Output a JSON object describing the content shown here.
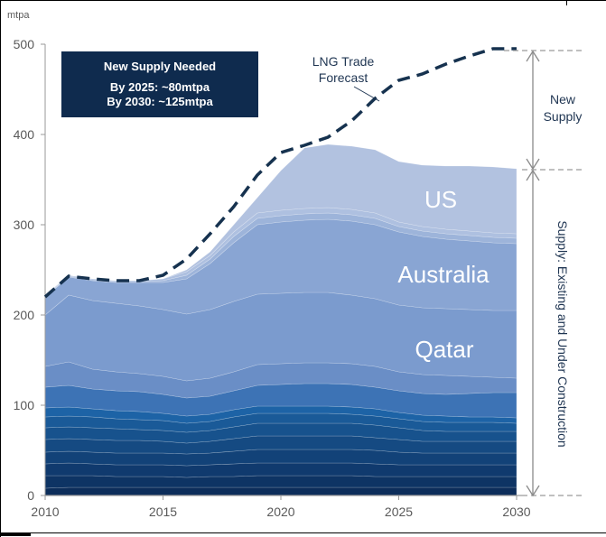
{
  "chart_data": {
    "type": "area",
    "ylabel": "mtpa",
    "xlabel": "",
    "ylim": [
      0,
      500
    ],
    "xlim": [
      2010,
      2030
    ],
    "y_ticks": [
      "0",
      "100",
      "200",
      "300",
      "400",
      "500"
    ],
    "x_ticks": [
      "2010",
      "2015",
      "2020",
      "2025",
      "2030"
    ],
    "x": [
      2010,
      2011,
      2012,
      2013,
      2014,
      2015,
      2016,
      2017,
      2018,
      2019,
      2020,
      2021,
      2022,
      2023,
      2024,
      2025,
      2026,
      2027,
      2028,
      2029,
      2030
    ],
    "series": [
      {
        "name": "base",
        "values": [
          8,
          9,
          9,
          9,
          9,
          9,
          9,
          9,
          9,
          9,
          9,
          9,
          9,
          9,
          9,
          9,
          9,
          9,
          9,
          9,
          9
        ]
      },
      {
        "name": "layer-2",
        "values": [
          22,
          22,
          22,
          21,
          21,
          21,
          20,
          21,
          21,
          22,
          22,
          22,
          22,
          22,
          21,
          21,
          21,
          21,
          21,
          21,
          21
        ]
      },
      {
        "name": "layer-3",
        "values": [
          35,
          36,
          35,
          34,
          34,
          34,
          33,
          34,
          35,
          36,
          36,
          36,
          36,
          36,
          35,
          34,
          34,
          34,
          34,
          34,
          34
        ]
      },
      {
        "name": "layer-4",
        "values": [
          48,
          49,
          48,
          47,
          47,
          47,
          46,
          47,
          49,
          51,
          51,
          51,
          51,
          51,
          50,
          48,
          47,
          47,
          47,
          47,
          47
        ]
      },
      {
        "name": "layer-5",
        "values": [
          62,
          63,
          62,
          61,
          61,
          60,
          58,
          60,
          63,
          66,
          66,
          66,
          66,
          66,
          64,
          62,
          60,
          60,
          60,
          60,
          60
        ]
      },
      {
        "name": "layer-6",
        "values": [
          75,
          76,
          75,
          74,
          73,
          72,
          70,
          72,
          76,
          80,
          80,
          80,
          80,
          80,
          78,
          75,
          72,
          71,
          71,
          71,
          71
        ]
      },
      {
        "name": "layer-7",
        "values": [
          87,
          88,
          87,
          85,
          84,
          83,
          80,
          82,
          87,
          91,
          91,
          91,
          91,
          90,
          88,
          85,
          82,
          81,
          81,
          81,
          80
        ]
      },
      {
        "name": "layer-8",
        "values": [
          97,
          98,
          96,
          94,
          93,
          91,
          88,
          90,
          95,
          99,
          99,
          99,
          99,
          98,
          96,
          92,
          89,
          88,
          87,
          87,
          86
        ]
      },
      {
        "name": "layer-9",
        "values": [
          120,
          122,
          118,
          116,
          115,
          112,
          108,
          110,
          116,
          122,
          123,
          124,
          124,
          123,
          120,
          116,
          113,
          112,
          113,
          114,
          114
        ]
      },
      {
        "name": "layer-10",
        "values": [
          143,
          148,
          140,
          137,
          135,
          132,
          127,
          130,
          137,
          145,
          146,
          147,
          147,
          146,
          143,
          137,
          134,
          133,
          132,
          131,
          130
        ]
      },
      {
        "name": "Qatar",
        "values": [
          200,
          222,
          216,
          213,
          210,
          206,
          201,
          206,
          215,
          223,
          224,
          225,
          225,
          222,
          218,
          211,
          208,
          207,
          206,
          205,
          205
        ]
      },
      {
        "name": "Australia",
        "values": [
          220,
          242,
          238,
          236,
          236,
          236,
          240,
          257,
          280,
          300,
          303,
          305,
          306,
          304,
          300,
          292,
          287,
          284,
          282,
          280,
          279
        ]
      },
      {
        "name": "layer-13",
        "values": [
          221,
          243,
          239,
          237,
          237,
          238,
          244,
          262,
          287,
          307,
          310,
          312,
          313,
          311,
          307,
          298,
          293,
          290,
          288,
          286,
          285
        ]
      },
      {
        "name": "layer-14",
        "values": [
          222,
          244,
          240,
          238,
          238,
          240,
          248,
          266,
          292,
          313,
          316,
          318,
          319,
          317,
          313,
          303,
          298,
          295,
          293,
          291,
          290
        ]
      },
      {
        "name": "US",
        "values": [
          222,
          244,
          240,
          238,
          238,
          240,
          250,
          270,
          300,
          330,
          360,
          385,
          389,
          387,
          383,
          370,
          366,
          365,
          365,
          364,
          362
        ]
      }
    ],
    "forecast": {
      "name": "LNG Trade Forecast",
      "x": [
        2010,
        2011,
        2012,
        2013,
        2014,
        2015,
        2016,
        2017,
        2018,
        2019,
        2020,
        2021,
        2022,
        2023,
        2024,
        2025,
        2026,
        2027,
        2028,
        2029,
        2030
      ],
      "values": [
        220,
        243,
        240,
        238,
        238,
        244,
        262,
        290,
        320,
        355,
        380,
        388,
        397,
        415,
        440,
        460,
        467,
        478,
        487,
        495,
        495
      ]
    },
    "region_labels": [
      "US",
      "Australia",
      "Qatar"
    ],
    "annotations": {
      "forecast_label": [
        "LNG Trade",
        "Forecast"
      ],
      "new_supply": [
        "New",
        "Supply"
      ],
      "existing_supply": "Supply: Existing and Under Construction"
    },
    "info_box": {
      "title": "New Supply Needed",
      "line1": "By 2025: ~80mtpa",
      "line2": "By 2030: ~125mtpa"
    },
    "colors": {
      "box_bg": "#0f2b4e",
      "forecast_line": "#16324f",
      "arrow": "#8a8a8a",
      "layers": [
        "#0c2d5a",
        "#0e3464",
        "#103a6e",
        "#124278",
        "#154a82",
        "#17528d",
        "#1a5a98",
        "#1d63a6",
        "#3d73b5",
        "#6a8ec6",
        "#7b9bce",
        "#89a5d3",
        "#9db4da",
        "#aec0e0",
        "#b2c2e0"
      ]
    }
  }
}
